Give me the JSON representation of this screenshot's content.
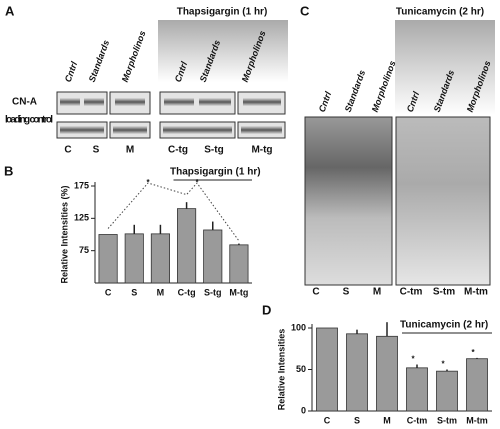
{
  "panel_a": {
    "letter": "A",
    "columns": [
      "Cntrl",
      "Standards",
      "Morpholinos",
      "Cntrl",
      "Standards",
      "Morpholinos"
    ],
    "treatment": "Thapsigargin (1 hr)",
    "rows": [
      "CN-A",
      "loading control"
    ],
    "lanes": [
      "C",
      "S",
      "M",
      "C-tg",
      "S-tg",
      "M-tg"
    ]
  },
  "panel_c": {
    "letter": "C",
    "columns": [
      "Cntrl",
      "Standards",
      "Morpholinos",
      "Cntrl",
      "Standards",
      "Morpholinos"
    ],
    "treatment": "Tunicamycin (2 hr)",
    "lanes": [
      "C",
      "S",
      "M",
      "C-tm",
      "S-tm",
      "M-tm"
    ]
  },
  "chart_data": [
    {
      "type": "bar",
      "letter": "B",
      "y_label": "Relative Intensities (%)",
      "annotation": "Thapsigargin (1 hr)",
      "asterisks": [
        "*",
        "*"
      ],
      "categories": [
        "C",
        "S",
        "M",
        "C-tg",
        "S-tg",
        "M-tg"
      ],
      "values": [
        100,
        101,
        101,
        140,
        107,
        84
      ],
      "errors": [
        0,
        14,
        14,
        10,
        13,
        2
      ],
      "color": "#9a9a9a",
      "ylim": [
        25,
        175
      ],
      "yticks": [
        75,
        125,
        175
      ]
    },
    {
      "type": "bar",
      "letter": "D",
      "y_label": "Relative Intensities",
      "annotation": "Tunicamycin (2 hr)",
      "asterisks": [
        "*",
        "*",
        "*"
      ],
      "categories": [
        "C",
        "S",
        "M",
        "C-tm",
        "S-tm",
        "M-tm"
      ],
      "values": [
        100,
        93,
        90,
        52,
        48,
        63
      ],
      "errors": [
        0,
        5,
        17,
        4,
        2,
        1
      ],
      "color": "#9a9a9a",
      "ylim": [
        0,
        100
      ],
      "yticks": [
        0,
        50,
        100
      ]
    }
  ]
}
